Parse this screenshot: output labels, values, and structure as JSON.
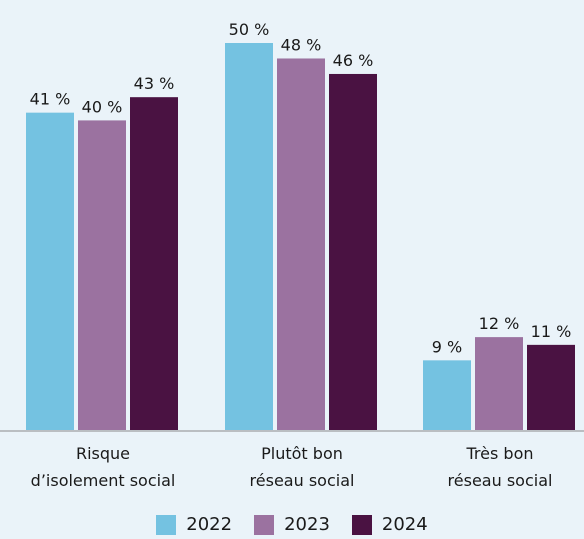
{
  "chart_data": {
    "type": "bar",
    "categories": [
      [
        "Risque",
        "d’isolement social"
      ],
      [
        "Plutôt bon",
        "réseau social"
      ],
      [
        "Très bon",
        "réseau social"
      ]
    ],
    "series": [
      {
        "name": "2022",
        "color": "#74c2e1",
        "values": [
          41,
          50,
          9
        ],
        "labels": [
          "41 %",
          "50 %",
          "9 %"
        ]
      },
      {
        "name": "2023",
        "color": "#9b72a0",
        "values": [
          40,
          48,
          12
        ],
        "labels": [
          "40 %",
          "48 %",
          "12 %"
        ]
      },
      {
        "name": "2024",
        "color": "#4a1242",
        "values": [
          43,
          46,
          11
        ],
        "labels": [
          "43 %",
          "46 %",
          "11 %"
        ]
      }
    ],
    "ylim": [
      0,
      50
    ],
    "grid": false,
    "legend_position": "bottom-center",
    "axis_color": "#8a8a8a"
  }
}
